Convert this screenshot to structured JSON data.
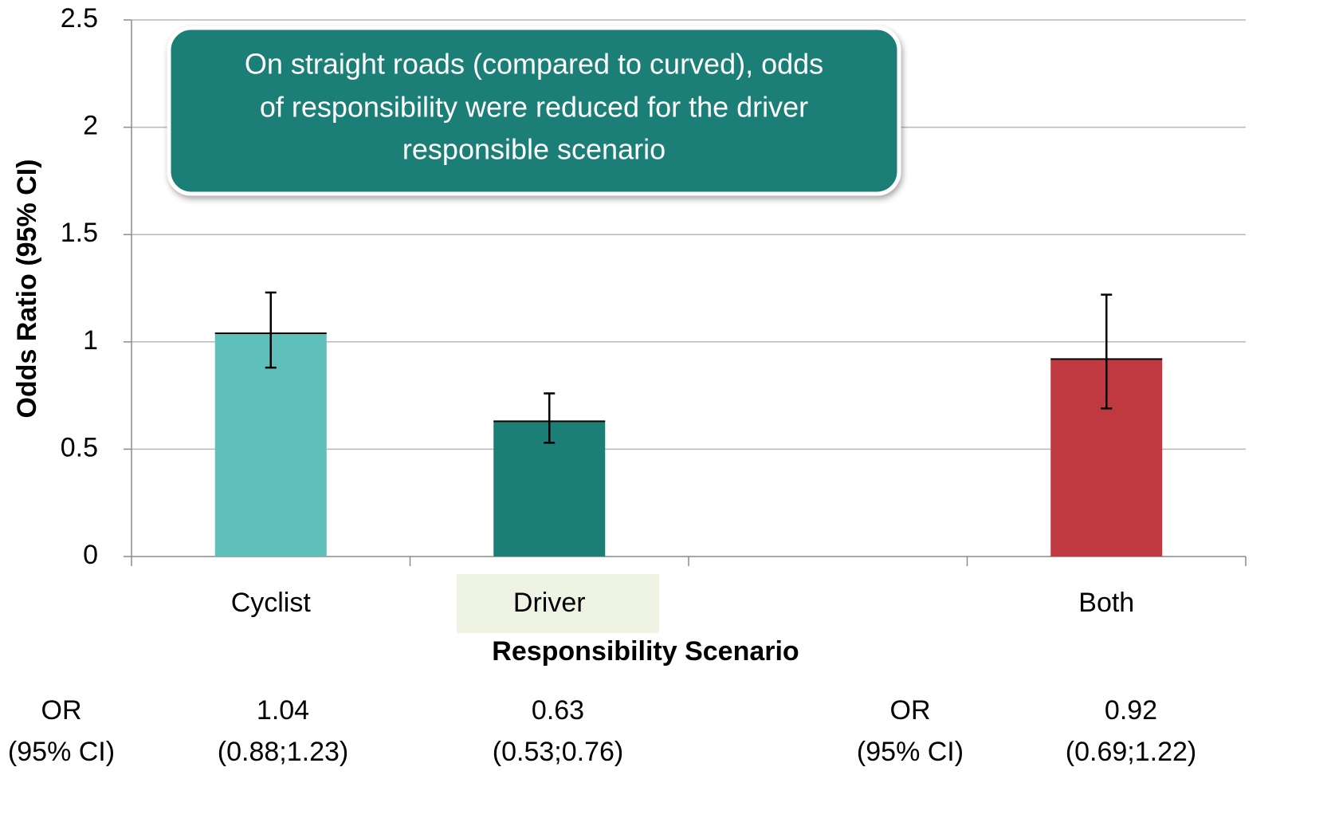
{
  "chart_data": {
    "type": "bar",
    "annotation": [
      "On straight roads (compared to curved), odds",
      "of responsibility were reduced for the driver",
      "responsible scenario"
    ],
    "y_label": "Odds Ratio (95% CI)",
    "x_label": "Responsibility Scenario",
    "categories": [
      "Cyclist",
      "Driver",
      null,
      "Both"
    ],
    "values": [
      1.04,
      0.63,
      null,
      0.92
    ],
    "ci_low": [
      0.88,
      0.53,
      null,
      0.69
    ],
    "ci_high": [
      1.23,
      0.76,
      null,
      1.22
    ],
    "colors": [
      "#5fbfbb",
      "#1c7f77",
      null,
      "#c13940"
    ],
    "ylim": [
      0,
      2.5
    ],
    "yticks": [
      0,
      0.5,
      1,
      1.5,
      2,
      2.5
    ],
    "grid": true,
    "table_header": [
      "OR",
      "(95% CI)"
    ],
    "value_labels": [
      "1.04",
      "0.63",
      null,
      "0.92"
    ],
    "ci_labels": [
      "(0.88;1.23)",
      "(0.53;0.76)",
      null,
      "(0.69;1.22)"
    ]
  }
}
